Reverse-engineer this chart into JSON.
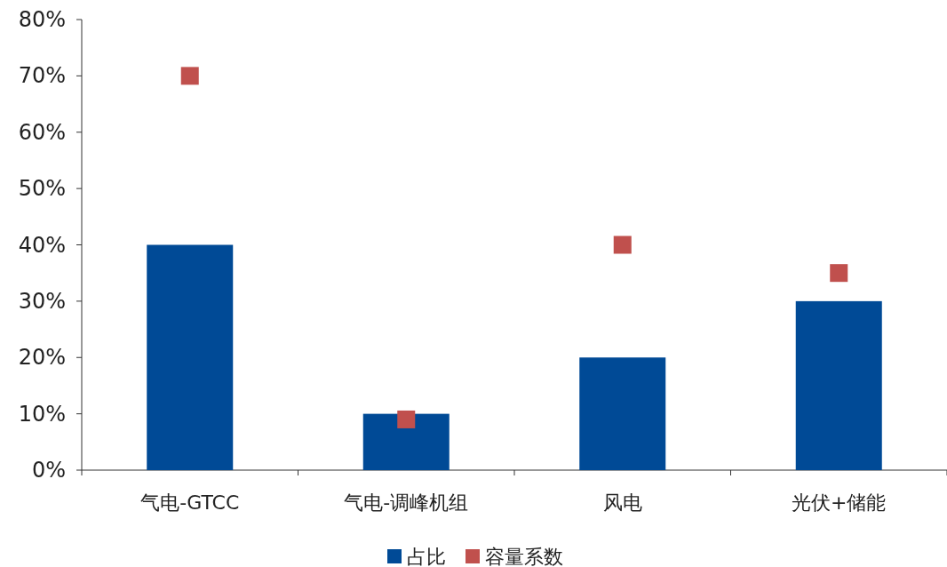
{
  "chart_data": {
    "type": "bar",
    "categories": [
      "气电-GTCC",
      "气电-调峰机组",
      "风电",
      "光伏+储能"
    ],
    "series": [
      {
        "name": "占比",
        "color": "#004a96",
        "values": [
          40,
          10,
          20,
          30
        ]
      },
      {
        "name": "容量系数",
        "type": "scatter",
        "color": "#c0504d",
        "values": [
          70,
          9,
          40,
          35
        ]
      }
    ],
    "ylim": [
      0,
      80
    ],
    "yticks": [
      {
        "value": 0,
        "label": "0%"
      },
      {
        "value": 10,
        "label": "10%"
      },
      {
        "value": 20,
        "label": "20%"
      },
      {
        "value": 30,
        "label": "30%"
      },
      {
        "value": 40,
        "label": "40%"
      },
      {
        "value": 50,
        "label": "50%"
      },
      {
        "value": 60,
        "label": "60%"
      },
      {
        "value": 70,
        "label": "70%"
      },
      {
        "value": 80,
        "label": "80%"
      }
    ],
    "marker": "square",
    "legend": "bottom",
    "grid": false
  }
}
